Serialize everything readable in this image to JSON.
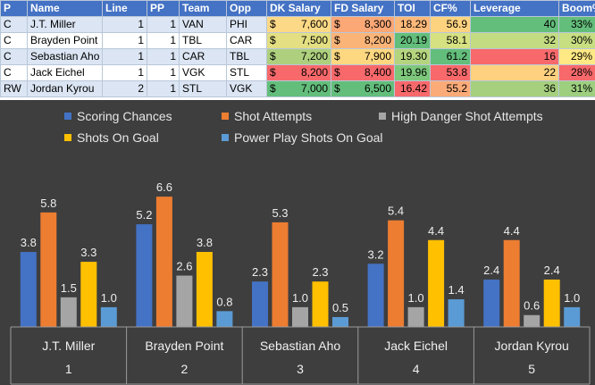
{
  "table": {
    "headers": [
      "P",
      "Name",
      "Line",
      "PP",
      "Team",
      "Opp",
      "DK Salary",
      "FD Salary",
      "TOI",
      "CF%",
      "Leverage",
      "Boom%"
    ],
    "rows": [
      {
        "p": "C",
        "name": "J.T. Miller",
        "line": "1",
        "pp": "1",
        "team": "VAN",
        "opp": "PHI",
        "dk_cur": "$",
        "dk": "7,600",
        "fd_cur": "$",
        "fd": "8,300",
        "toi": "18.29",
        "cf": "56.9",
        "leverage": "40",
        "boom": "33%"
      },
      {
        "p": "C",
        "name": "Brayden Point",
        "line": "1",
        "pp": "1",
        "team": "TBL",
        "opp": "CAR",
        "dk_cur": "$",
        "dk": "7,500",
        "fd_cur": "$",
        "fd": "8,200",
        "toi": "20.19",
        "cf": "58.1",
        "leverage": "32",
        "boom": "30%"
      },
      {
        "p": "C",
        "name": "Sebastian Aho",
        "line": "1",
        "pp": "1",
        "team": "CAR",
        "opp": "TBL",
        "dk_cur": "$",
        "dk": "7,200",
        "fd_cur": "$",
        "fd": "7,900",
        "toi": "19.30",
        "cf": "61.2",
        "leverage": "16",
        "boom": "29%"
      },
      {
        "p": "C",
        "name": "Jack Eichel",
        "line": "1",
        "pp": "1",
        "team": "VGK",
        "opp": "STL",
        "dk_cur": "$",
        "dk": "8,200",
        "fd_cur": "$",
        "fd": "8,400",
        "toi": "19.96",
        "cf": "53.8",
        "leverage": "22",
        "boom": "28%"
      },
      {
        "p": "RW",
        "name": "Jordan Kyrou",
        "line": "2",
        "pp": "1",
        "team": "STL",
        "opp": "VGK",
        "dk_cur": "$",
        "dk": "7,000",
        "fd_cur": "$",
        "fd": "6,500",
        "toi": "16.42",
        "cf": "55.2",
        "leverage": "36",
        "boom": "31%"
      }
    ],
    "heat_colors": {
      "dk": [
        "#fcd986",
        "#e3df82",
        "#aed07e",
        "#f8696b",
        "#63be7b"
      ],
      "fd": [
        "#fba776",
        "#fbb478",
        "#fed880",
        "#f8696b",
        "#63be7b"
      ],
      "toi": [
        "#fcb97a",
        "#63be7b",
        "#b4d57e",
        "#7ec87c",
        "#f8696b"
      ],
      "cf": [
        "#fed380",
        "#d6e182",
        "#63be7b",
        "#f8696b",
        "#fbab78"
      ],
      "leverage": [
        "#63be7b",
        "#c3dc81",
        "#f8696b",
        "#fdd17f",
        "#a6d07e"
      ],
      "boom": [
        "#63be7b",
        "#c7de81",
        "#ffe984",
        "#f8696b",
        "#9dcf7f"
      ]
    }
  },
  "chart_data": {
    "type": "bar",
    "categories": [
      "J.T. Miller",
      "Brayden Point",
      "Sebastian Aho",
      "Jack Eichel",
      "Jordan Kyrou"
    ],
    "category_index": [
      "1",
      "2",
      "3",
      "4",
      "5"
    ],
    "series": [
      {
        "name": "Scoring Chances",
        "values": [
          3.8,
          5.2,
          2.3,
          3.2,
          2.4
        ],
        "color": "#4472c4"
      },
      {
        "name": "Shot Attempts",
        "values": [
          5.8,
          6.6,
          5.3,
          5.4,
          4.4
        ],
        "color": "#ed7d31"
      },
      {
        "name": "High Danger Shot Attempts",
        "values": [
          1.5,
          2.6,
          1.0,
          1.0,
          0.6
        ],
        "color": "#a5a5a5"
      },
      {
        "name": "Shots On Goal",
        "values": [
          3.3,
          3.8,
          2.3,
          4.4,
          2.4
        ],
        "color": "#ffc000"
      },
      {
        "name": "Power Play Shots On Goal",
        "values": [
          1.0,
          0.8,
          0.5,
          1.4,
          1.0
        ],
        "color": "#5b9bd5"
      }
    ],
    "background": "#3e3e3e",
    "legend_position": "top",
    "grid": false,
    "ylim": [
      0,
      7
    ]
  }
}
